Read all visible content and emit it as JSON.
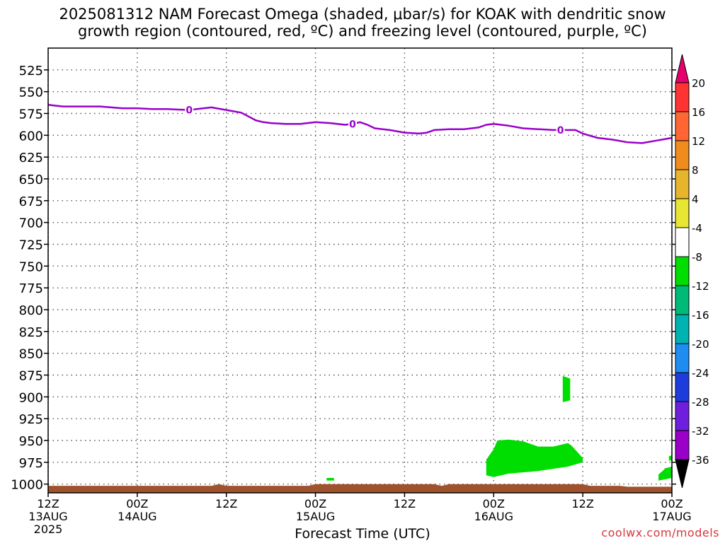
{
  "chart_data": {
    "type": "heatmap",
    "title_line1": "2025081312 NAM Forecast Omega (shaded, μbar/s) for KOAK with dendritic snow",
    "title_line2": "growth region (contoured, red, ºC) and freezing level (contoured, purple, ºC)",
    "xlabel": "Forecast Time (UTC)",
    "credit": "coolwx.com/models",
    "x_ticks": [
      {
        "hours": 0,
        "line1": "12Z",
        "line2": "13AUG",
        "line3": "2025"
      },
      {
        "hours": 12,
        "line1": "00Z",
        "line2": "14AUG",
        "line3": ""
      },
      {
        "hours": 24,
        "line1": "12Z",
        "line2": "",
        "line3": ""
      },
      {
        "hours": 36,
        "line1": "00Z",
        "line2": "15AUG",
        "line3": ""
      },
      {
        "hours": 48,
        "line1": "12Z",
        "line2": "",
        "line3": ""
      },
      {
        "hours": 60,
        "line1": "00Z",
        "line2": "16AUG",
        "line3": ""
      },
      {
        "hours": 72,
        "line1": "12Z",
        "line2": "",
        "line3": ""
      },
      {
        "hours": 84,
        "line1": "00Z",
        "line2": "17AUG",
        "line3": ""
      }
    ],
    "y_ticks": [
      "525",
      "550",
      "575",
      "600",
      "625",
      "650",
      "675",
      "700",
      "725",
      "750",
      "775",
      "800",
      "825",
      "850",
      "875",
      "900",
      "925",
      "950",
      "975",
      "1000"
    ],
    "y_values": [
      525,
      550,
      575,
      600,
      625,
      650,
      675,
      700,
      725,
      750,
      775,
      800,
      825,
      850,
      875,
      900,
      925,
      950,
      975,
      1000
    ],
    "y_range_hpa": [
      500,
      1010
    ],
    "x_range_hours": [
      0,
      84
    ],
    "freezing_level": {
      "label": "0",
      "color": "#9900cc",
      "hours": [
        0,
        2,
        4,
        7,
        10,
        12,
        14,
        16,
        19,
        20,
        22,
        24,
        26,
        28,
        29,
        30,
        32,
        34,
        36,
        38,
        40,
        41,
        42,
        43,
        44,
        46,
        48,
        50,
        51,
        52,
        54,
        56,
        58,
        59,
        60,
        62,
        64,
        66,
        68,
        70,
        71,
        72,
        74,
        76,
        78,
        80,
        82,
        84
      ],
      "pressure": [
        565,
        567,
        567,
        567,
        569,
        569,
        570,
        570,
        571,
        570,
        568,
        571,
        574,
        583,
        585,
        586,
        587,
        587,
        585,
        586,
        588,
        587,
        585,
        588,
        592,
        594,
        597,
        598,
        597,
        594,
        593,
        593,
        591,
        588,
        587,
        589,
        592,
        593,
        594,
        594,
        594,
        598,
        603,
        605,
        608,
        609,
        606,
        603
      ],
      "label_hours": [
        19,
        41,
        69
      ]
    },
    "terrain": {
      "color": "#a0522d",
      "hours": [
        0,
        22,
        23,
        24,
        35,
        36,
        52,
        53,
        54,
        72,
        73,
        77,
        78,
        84
      ],
      "top_hpa": [
        1002,
        1002,
        1000,
        1002,
        1002,
        1000,
        1000,
        1002,
        1000,
        1000,
        1002,
        1002,
        1003,
        1003
      ]
    },
    "omega_regions": [
      {
        "level": "-8 to -4",
        "color": "#00dd00",
        "hours": [
          59,
          60,
          60.5,
          62,
          64,
          66,
          68,
          70,
          70.5,
          72,
          72,
          70,
          66,
          62,
          60,
          59
        ],
        "pressure": [
          972,
          960,
          950,
          949,
          951,
          957,
          957,
          953,
          956,
          970,
          975,
          980,
          985,
          988,
          992,
          990
        ]
      },
      {
        "level": "-8 to -4",
        "color": "#00dd00",
        "hours": [
          69.3,
          70.3,
          70.3,
          69.3
        ],
        "pressure": [
          876,
          879,
          904,
          906
        ]
      },
      {
        "level": "-8 to -4",
        "color": "#00dd00",
        "hours": [
          37.5,
          38.5,
          38.5,
          37.5
        ],
        "pressure": [
          993,
          993,
          996,
          996
        ]
      },
      {
        "level": "-8 to -4",
        "color": "#00dd00",
        "hours": [
          83,
          84,
          84,
          82.2,
          82.2,
          83
        ],
        "pressure": [
          982,
          980,
          993,
          996,
          989,
          983
        ]
      },
      {
        "level": "-8 to -4",
        "color": "#00dd00",
        "hours": [
          83.6,
          84,
          84,
          83.6
        ],
        "pressure": [
          968,
          967,
          973,
          973
        ]
      }
    ],
    "colorbar": {
      "levels": [
        "20",
        "16",
        "12",
        "8",
        "4",
        "-4",
        "-8",
        "-12",
        "-16",
        "-20",
        "-24",
        "-28",
        "-32",
        "-36"
      ],
      "colors": [
        "#ff3333",
        "#ff6633",
        "#f08c1e",
        "#e6b42d",
        "#e6e633",
        "#ffffff",
        "#00dd00",
        "#00bb77",
        "#00b3b3",
        "#1e8cf0",
        "#1e3cdc",
        "#6e1edc",
        "#9900c8",
        "#a0a0a0"
      ],
      "top_arrow": "#e6006e",
      "bottom_arrow": "#000000"
    }
  }
}
